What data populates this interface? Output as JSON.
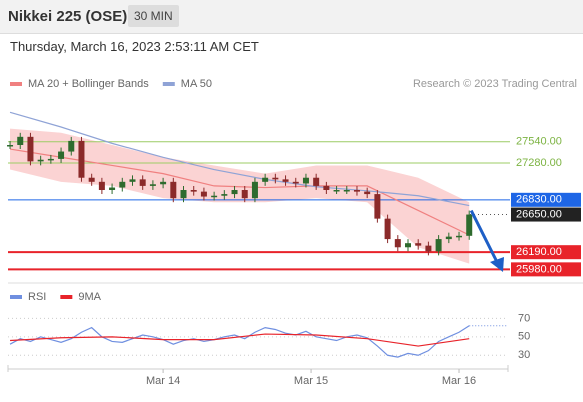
{
  "header": {
    "title": "Nikkei 225 (OSE)",
    "interval": "30 MIN",
    "timestamp": "Thursday, March 16, 2023 2:53:11 AM CET"
  },
  "chart_data": [
    {
      "type": "candlestick",
      "credit": "Research © 2023 Trading Central",
      "xlim": [
        -0.2,
        48.8
      ],
      "ylim": [
        25850,
        28050
      ],
      "xticks": [
        {
          "value": 15,
          "label": "Mar 14"
        },
        {
          "value": 29.5,
          "label": "Mar 15"
        },
        {
          "value": 44,
          "label": "Mar 16"
        }
      ],
      "price": {
        "color_up": "#2e6b2e",
        "color_down": "#8b2a2a",
        "x": [
          0,
          1,
          2,
          3,
          4,
          5,
          6,
          7,
          8,
          9,
          10,
          11,
          12,
          13,
          14,
          15,
          16,
          17,
          18,
          19,
          20,
          21,
          22,
          23,
          24,
          25,
          26,
          27,
          28,
          29,
          30,
          31,
          32,
          33,
          34,
          35,
          36,
          37,
          38,
          39,
          40,
          41,
          42,
          43,
          44,
          45
        ],
        "values": [
          27500,
          27600,
          27300,
          27320,
          27330,
          27420,
          27550,
          27100,
          27050,
          26950,
          26980,
          27050,
          27080,
          27000,
          27020,
          27050,
          26850,
          26950,
          26930,
          26870,
          26880,
          26900,
          26950,
          26850,
          27050,
          27100,
          27080,
          27050,
          27030,
          27100,
          27000,
          26950,
          26950,
          26950,
          26930,
          26900,
          26600,
          26350,
          26250,
          26300,
          26270,
          26200,
          26350,
          26380,
          26390,
          26650
        ]
      },
      "series": [
        {
          "name": "MA 20 + Bollinger Bands",
          "color": "#f08080",
          "band_color": "#fbd3d3",
          "x": [
            0,
            5,
            10,
            15,
            20,
            25,
            30,
            35,
            40,
            45
          ],
          "values": [
            27450,
            27350,
            27250,
            27150,
            27000,
            26980,
            27000,
            27000,
            26700,
            26400
          ],
          "upper": [
            27700,
            27650,
            27500,
            27350,
            27250,
            27150,
            27250,
            27250,
            27100,
            26800
          ],
          "lower": [
            27200,
            27050,
            27000,
            26850,
            26800,
            26800,
            26850,
            26800,
            26250,
            26050
          ]
        },
        {
          "name": "MA 50",
          "color": "#8fa3d6",
          "x": [
            0,
            5,
            10,
            15,
            20,
            25,
            30,
            35,
            40,
            45
          ],
          "values": [
            27900,
            27720,
            27520,
            27350,
            27200,
            27080,
            26990,
            26940,
            26880,
            26760
          ]
        }
      ],
      "levels": [
        {
          "value": 27540,
          "label": "27540.00",
          "color": "#9ccc65",
          "style": "text"
        },
        {
          "value": 27280,
          "label": "27280.00",
          "color": "#9ccc65",
          "style": "text"
        },
        {
          "value": 26830,
          "label": "26830.00",
          "color": "#1e66e6",
          "style": "box"
        },
        {
          "value": 26650,
          "label": "26650.00",
          "color": "#222222",
          "style": "box"
        },
        {
          "value": 26190,
          "label": "26190.00",
          "color": "#e8232a",
          "style": "box"
        },
        {
          "value": 25980,
          "label": "25980.00",
          "color": "#e8232a",
          "style": "box"
        }
      ]
    },
    {
      "type": "line",
      "xlim": [
        -0.2,
        48.8
      ],
      "ylim": [
        14,
        90
      ],
      "yticks": [
        30,
        50,
        70
      ],
      "series": [
        {
          "name": "RSI",
          "color": "#6f8fe0",
          "x": [
            0,
            1,
            2,
            3,
            4,
            5,
            6,
            7,
            8,
            9,
            10,
            11,
            12,
            13,
            14,
            15,
            16,
            17,
            18,
            19,
            20,
            21,
            22,
            23,
            24,
            25,
            26,
            27,
            28,
            29,
            30,
            31,
            32,
            33,
            34,
            35,
            36,
            37,
            38,
            39,
            40,
            41,
            42,
            43,
            44,
            45
          ],
          "values": [
            42,
            48,
            45,
            50,
            47,
            44,
            48,
            55,
            60,
            50,
            45,
            44,
            48,
            52,
            50,
            47,
            42,
            46,
            48,
            45,
            47,
            50,
            52,
            48,
            55,
            60,
            58,
            54,
            52,
            56,
            50,
            48,
            46,
            50,
            52,
            49,
            40,
            30,
            28,
            32,
            30,
            35,
            45,
            50,
            55,
            62
          ]
        },
        {
          "name": "9MA",
          "color": "#e8232a",
          "x": [
            0,
            5,
            10,
            15,
            20,
            25,
            30,
            35,
            40,
            45
          ],
          "values": [
            46,
            49,
            50,
            47,
            47,
            53,
            52,
            48,
            40,
            48
          ]
        }
      ]
    }
  ]
}
